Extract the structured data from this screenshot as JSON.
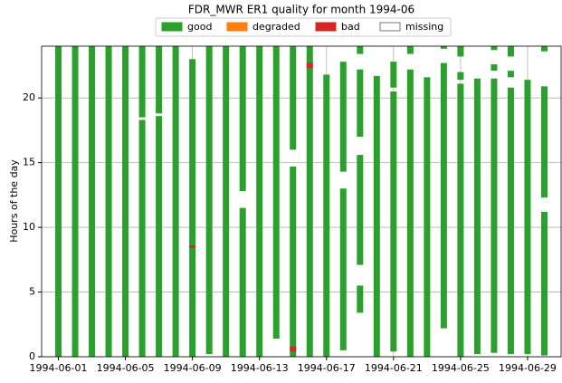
{
  "chart_data": {
    "type": "broken_bar",
    "title": "FDR_MWR ER1 quality for month 1994-06",
    "ylabel": "Hours of the day",
    "x": [
      1,
      2,
      3,
      4,
      5,
      6,
      7,
      8,
      9,
      10,
      11,
      12,
      13,
      14,
      15,
      16,
      17,
      18,
      19,
      20,
      21,
      22,
      23,
      24,
      25,
      26,
      27,
      28,
      29,
      30
    ],
    "xlim": [
      0,
      31
    ],
    "xticks": [
      {
        "value": 1,
        "label": "1994-06-01"
      },
      {
        "value": 5,
        "label": "1994-06-05"
      },
      {
        "value": 9,
        "label": "1994-06-09"
      },
      {
        "value": 13,
        "label": "1994-06-13"
      },
      {
        "value": 17,
        "label": "1994-06-17"
      },
      {
        "value": 21,
        "label": "1994-06-21"
      },
      {
        "value": 25,
        "label": "1994-06-25"
      },
      {
        "value": 29,
        "label": "1994-06-29"
      }
    ],
    "ylim": [
      0,
      24
    ],
    "yticks": [
      0,
      5,
      10,
      15,
      20
    ],
    "grid": true,
    "legend": "top",
    "series": [
      {
        "name": "good",
        "color": "#2ca02c",
        "values": [
          [
            [
              0,
              24
            ]
          ],
          [
            [
              0,
              24
            ]
          ],
          [
            [
              0,
              24
            ]
          ],
          [
            [
              0,
              24
            ]
          ],
          [
            [
              0,
              24
            ]
          ],
          [
            [
              0,
              18.3
            ],
            [
              18.5,
              24
            ]
          ],
          [
            [
              0,
              18.6
            ],
            [
              18.8,
              24
            ]
          ],
          [
            [
              0,
              24
            ]
          ],
          [
            [
              0,
              23
            ]
          ],
          [
            [
              0.2,
              24
            ]
          ],
          [
            [
              0,
              24
            ]
          ],
          [
            [
              0,
              11.5
            ],
            [
              12.8,
              24
            ]
          ],
          [
            [
              0,
              24
            ]
          ],
          [
            [
              1.4,
              24
            ]
          ],
          [
            [
              0,
              14.7
            ],
            [
              16,
              24
            ]
          ],
          [
            [
              0,
              24
            ]
          ],
          [
            [
              0,
              21.8
            ]
          ],
          [
            [
              0.5,
              13
            ],
            [
              14.3,
              22.8
            ]
          ],
          [
            [
              3.4,
              5.5
            ],
            [
              7.1,
              15.6
            ],
            [
              17,
              22.2
            ],
            [
              23.4,
              24
            ]
          ],
          [
            [
              0,
              21.7
            ]
          ],
          [
            [
              0.4,
              20.5
            ],
            [
              20.8,
              22.8
            ]
          ],
          [
            [
              0,
              22.2
            ],
            [
              23.4,
              24
            ]
          ],
          [
            [
              0,
              21.6
            ]
          ],
          [
            [
              2.2,
              22.7
            ],
            [
              23.8,
              24
            ]
          ],
          [
            [
              0,
              21.1
            ],
            [
              21.4,
              22
            ],
            [
              23.2,
              24
            ]
          ],
          [
            [
              0.2,
              21.5
            ]
          ],
          [
            [
              0.3,
              21.5
            ],
            [
              22.1,
              22.6
            ],
            [
              23.7,
              24
            ]
          ],
          [
            [
              0.2,
              20.8
            ],
            [
              21.6,
              22.1
            ],
            [
              23.2,
              24
            ]
          ],
          [
            [
              0.2,
              21.4
            ]
          ],
          [
            [
              0.1,
              11.2
            ],
            [
              12.3,
              20.9
            ],
            [
              23.6,
              24
            ]
          ]
        ]
      },
      {
        "name": "degraded",
        "color": "#ff7f0e",
        "values": [
          [],
          [],
          [],
          [],
          [],
          [],
          [],
          [],
          [],
          [],
          [],
          [],
          [],
          [],
          [],
          [],
          [],
          [],
          [],
          [],
          [],
          [],
          [],
          [],
          [],
          [],
          [],
          [],
          [],
          []
        ]
      },
      {
        "name": "bad",
        "color": "#d62728",
        "values": [
          [],
          [],
          [],
          [],
          [],
          [],
          [],
          [],
          [
            [
              8.4,
              8.6
            ]
          ],
          [],
          [],
          [],
          [],
          [],
          [
            [
              0.4,
              0.8
            ]
          ],
          [
            [
              22.3,
              22.7
            ]
          ],
          [],
          [],
          [],
          [],
          [],
          [],
          [],
          [],
          [],
          [],
          [],
          [],
          [],
          []
        ]
      },
      {
        "name": "missing",
        "color": "#ffffff",
        "values": [
          [],
          [],
          [],
          [],
          [],
          [],
          [],
          [],
          [],
          [],
          [],
          [],
          [],
          [],
          [],
          [],
          [],
          [],
          [],
          [],
          [],
          [],
          [],
          [],
          [],
          [],
          [],
          [],
          [],
          []
        ]
      }
    ]
  }
}
